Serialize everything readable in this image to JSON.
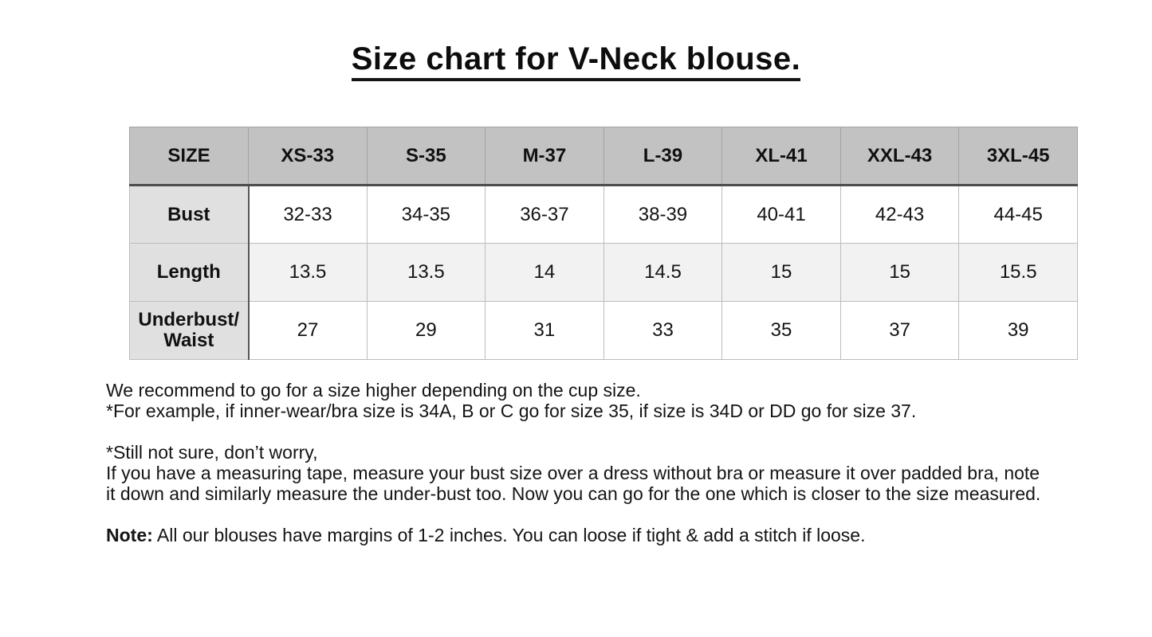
{
  "title": "Size chart for V-Neck blouse.",
  "table": {
    "columns": [
      "SIZE",
      "XS-33",
      "S-35",
      "M-37",
      "L-39",
      "XL-41",
      "XXL-43",
      "3XL-45"
    ],
    "rows": [
      {
        "label": "Bust",
        "values": [
          "32-33",
          "34-35",
          "36-37",
          "38-39",
          "40-41",
          "42-43",
          "44-45"
        ]
      },
      {
        "label": "Length",
        "values": [
          "13.5",
          "13.5",
          "14",
          "14.5",
          "15",
          "15",
          "15.5"
        ]
      },
      {
        "label": "Underbust/\nWaist",
        "values": [
          "27",
          "29",
          "31",
          "33",
          "35",
          "37",
          "39"
        ]
      }
    ]
  },
  "notes": {
    "recommendation": "We recommend to go for a size higher depending on the cup size.\n*For example, if inner-wear/bra size is 34A, B or C go for size 35, if size is 34D or DD go for size 37.",
    "measuring": "*Still not sure, don’t worry,\nIf you have a measuring tape, measure your bust size over a dress without bra or measure it over padded bra, note\nit down and similarly measure the under-bust too. Now you can go for the one which is closer to the size measured.",
    "note_label": "Note:",
    "note_text": " All our blouses have margins of 1-2 inches. You can loose if tight & add a stitch if loose."
  },
  "colors": {
    "header_bg": "#c2c2c2",
    "label_column_bg": "#e0e0e0",
    "alt_row_bg": "#f2f2f2",
    "heavy_rule": "#4d4d4d",
    "text": "#141414"
  }
}
